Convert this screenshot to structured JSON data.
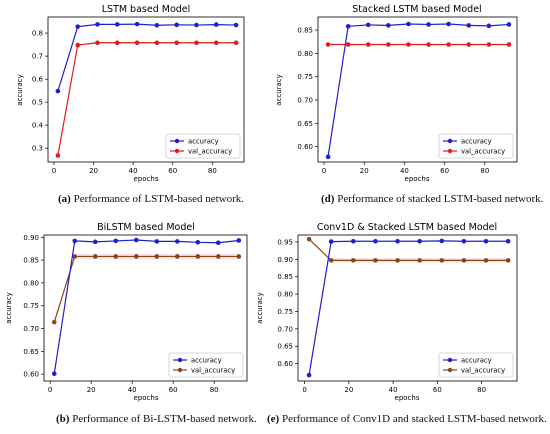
{
  "captions": [
    {
      "tag": "(a)",
      "text": " Performance of LSTM-based network."
    },
    {
      "tag": "(d)",
      "text": " Performance of stacked LSTM-based network."
    },
    {
      "tag": "(b)",
      "text": " Performance of Bi-LSTM-based network."
    },
    {
      "tag": "(e)",
      "text": " Performance of Conv1D and stacked LSTM-based network."
    }
  ],
  "colors": {
    "accuracy": "#1f1fcc",
    "val_red": "#e41a1c",
    "val_brown": "#8b4513",
    "band": "#f7dbe8"
  },
  "chart_data": [
    {
      "type": "line",
      "title": "LSTM based Model",
      "xlabel": "epochs",
      "ylabel": "accuracy",
      "xlim": [
        -3,
        96
      ],
      "ylim": [
        0.24,
        0.87
      ],
      "xticks": [
        0,
        20,
        40,
        60,
        80
      ],
      "yticks": [
        0.3,
        0.4,
        0.5,
        0.6,
        0.7,
        0.8
      ],
      "yticklabels": [
        "0.3",
        "0.4",
        "0.5",
        "0.6",
        "0.7",
        "0.8"
      ],
      "grid": false,
      "legend": "lower right",
      "x": [
        2,
        12,
        22,
        32,
        42,
        52,
        62,
        72,
        82,
        92
      ],
      "series": [
        {
          "name": "accuracy",
          "color": "#1f1fcc",
          "values": [
            0.548,
            0.828,
            0.838,
            0.838,
            0.839,
            0.834,
            0.836,
            0.835,
            0.837,
            0.835
          ]
        },
        {
          "name": "val_accuracy",
          "color": "#e41a1c",
          "values": [
            0.268,
            0.748,
            0.758,
            0.758,
            0.758,
            0.758,
            0.758,
            0.758,
            0.758,
            0.758
          ]
        }
      ]
    },
    {
      "type": "line",
      "title": "Stacked LSTM based Model",
      "xlabel": "epochs",
      "ylabel": "accuracy",
      "xlim": [
        -3,
        96
      ],
      "ylim": [
        0.567,
        0.878
      ],
      "xticks": [
        0,
        20,
        40,
        60,
        80
      ],
      "yticks": [
        0.6,
        0.65,
        0.7,
        0.75,
        0.8,
        0.85
      ],
      "yticklabels": [
        "0.60",
        "0.65",
        "0.70",
        "0.75",
        "0.80",
        "0.85"
      ],
      "grid": false,
      "legend": "lower right",
      "x": [
        2,
        12,
        22,
        32,
        42,
        52,
        62,
        72,
        82,
        92
      ],
      "series": [
        {
          "name": "accuracy",
          "color": "#1f1fcc",
          "values": [
            0.578,
            0.858,
            0.861,
            0.86,
            0.863,
            0.862,
            0.863,
            0.86,
            0.859,
            0.862
          ]
        },
        {
          "name": "val_accuracy",
          "color": "#e41a1c",
          "values": [
            0.819,
            0.819,
            0.819,
            0.819,
            0.819,
            0.819,
            0.819,
            0.819,
            0.819,
            0.819
          ]
        }
      ]
    },
    {
      "type": "line",
      "title": "BiLSTM based Model",
      "xlabel": "epochs",
      "ylabel": "accuracy",
      "xlim": [
        -3,
        96
      ],
      "ylim": [
        0.585,
        0.905
      ],
      "xticks": [
        0,
        20,
        40,
        60,
        80
      ],
      "yticks": [
        0.6,
        0.65,
        0.7,
        0.75,
        0.8,
        0.85,
        0.9
      ],
      "yticklabels": [
        "0.60",
        "0.65",
        "0.70",
        "0.75",
        "0.80",
        "0.85",
        "0.90"
      ],
      "grid": false,
      "legend": "lower right",
      "x": [
        2,
        12,
        22,
        32,
        42,
        52,
        62,
        72,
        82,
        92
      ],
      "series": [
        {
          "name": "accuracy",
          "color": "#1f1fcc",
          "values": [
            0.601,
            0.892,
            0.89,
            0.892,
            0.894,
            0.891,
            0.891,
            0.889,
            0.888,
            0.893
          ]
        },
        {
          "name": "val_accuracy",
          "color": "#8b4513",
          "values": [
            0.714,
            0.858,
            0.858,
            0.858,
            0.858,
            0.858,
            0.858,
            0.858,
            0.858,
            0.858
          ]
        }
      ]
    },
    {
      "type": "line",
      "title": "Conv1D & Stacked LSTM based Model",
      "xlabel": "epochs",
      "ylabel": "accuracy",
      "xlim": [
        -3,
        96
      ],
      "ylim": [
        0.55,
        0.97
      ],
      "xticks": [
        0,
        20,
        40,
        60,
        80
      ],
      "yticks": [
        0.6,
        0.65,
        0.7,
        0.75,
        0.8,
        0.85,
        0.9,
        0.95
      ],
      "yticklabels": [
        "0.60",
        "0.65",
        "0.70",
        "0.75",
        "0.80",
        "0.85",
        "0.90",
        "0.95"
      ],
      "grid": false,
      "legend": "lower right",
      "x": [
        2,
        12,
        22,
        32,
        42,
        52,
        62,
        72,
        82,
        92
      ],
      "series": [
        {
          "name": "accuracy",
          "color": "#1f1fcc",
          "values": [
            0.567,
            0.951,
            0.952,
            0.952,
            0.952,
            0.952,
            0.953,
            0.952,
            0.952,
            0.952
          ]
        },
        {
          "name": "val_accuracy",
          "color": "#8b4513",
          "values": [
            0.958,
            0.897,
            0.897,
            0.897,
            0.897,
            0.897,
            0.897,
            0.897,
            0.897,
            0.897
          ]
        }
      ]
    }
  ]
}
